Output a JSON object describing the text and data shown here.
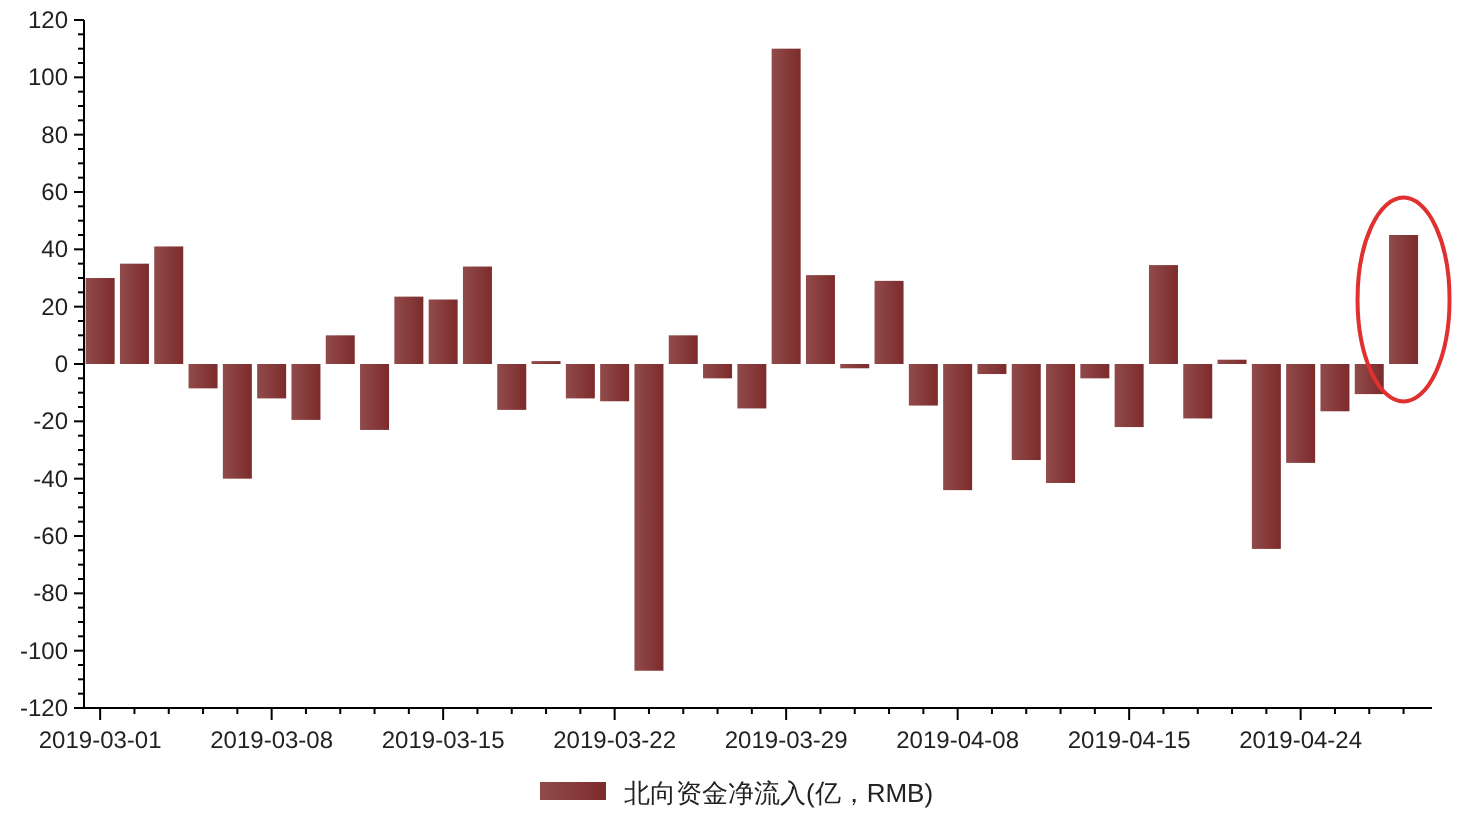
{
  "chart_data": {
    "type": "bar",
    "categories": [
      "2019-03-01",
      null,
      null,
      null,
      null,
      "2019-03-08",
      null,
      null,
      null,
      null,
      "2019-03-15",
      null,
      null,
      null,
      null,
      "2019-03-22",
      null,
      null,
      null,
      null,
      "2019-03-29",
      null,
      null,
      null,
      null,
      "2019-04-08",
      null,
      null,
      null,
      null,
      "2019-04-15",
      null,
      null,
      null,
      null,
      "2019-04-24",
      null,
      null,
      null
    ],
    "series": [
      {
        "name": "北向资金净流入(亿，RMB)",
        "color": "#7d2b2b",
        "values": [
          30,
          35,
          41,
          -8.5,
          -40,
          -12,
          -19.5,
          10,
          -23,
          23.5,
          22.5,
          34,
          -16,
          1,
          -12,
          -13,
          -107,
          10,
          -5,
          -15.5,
          110,
          31,
          -1.5,
          29,
          -14.5,
          -44,
          -3.5,
          -33.5,
          -41.5,
          -5,
          -22,
          34.5,
          -19,
          1.5,
          -64.5,
          -34.5,
          -16.5,
          -10.5,
          45
        ]
      }
    ],
    "ylim": [
      -120,
      120
    ],
    "yticks": [
      -120,
      -100,
      -80,
      -60,
      -40,
      -20,
      0,
      20,
      40,
      60,
      80,
      100,
      120
    ],
    "grid": false,
    "legend": "bottom"
  }
}
